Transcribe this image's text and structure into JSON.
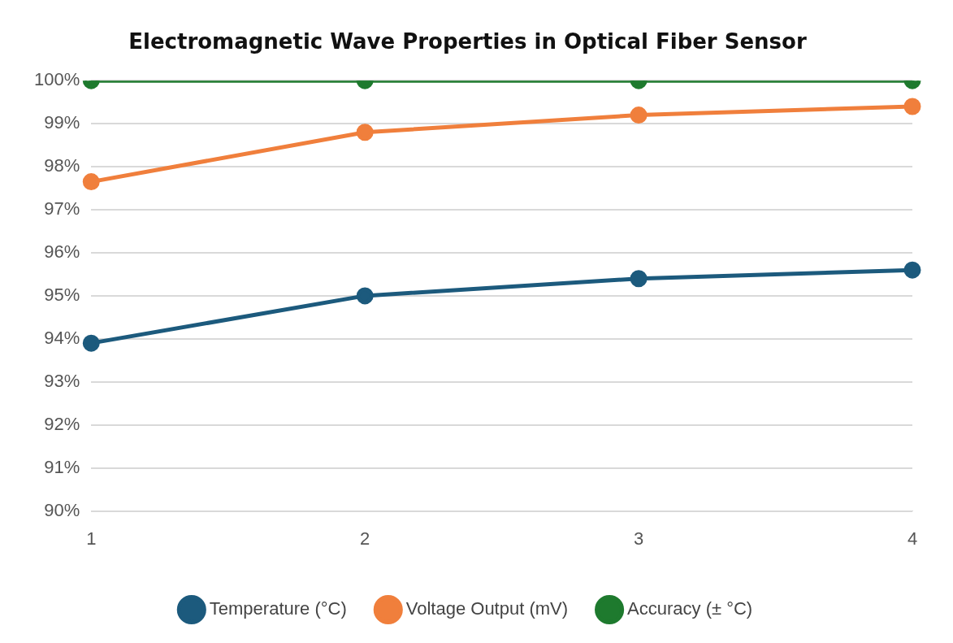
{
  "chart_data": {
    "type": "line",
    "title": "Electromagnetic Wave Properties in Optical Fiber Sensor",
    "categories": [
      "1",
      "2",
      "3",
      "4"
    ],
    "series": [
      {
        "name": "Temperature (°C)",
        "color": "#1c5a7d",
        "values": [
          93.9,
          95.0,
          95.4,
          95.6
        ]
      },
      {
        "name": "Voltage Output (mV)",
        "color": "#f07f3c",
        "values": [
          97.65,
          98.8,
          99.2,
          99.4
        ]
      },
      {
        "name": "Accuracy (± °C)",
        "color": "#1e7a2e",
        "values": [
          100,
          100,
          100,
          100
        ]
      }
    ],
    "ylim": [
      90,
      100
    ],
    "yticks": [
      {
        "value": 90,
        "label": "90%"
      },
      {
        "value": 91,
        "label": "91%"
      },
      {
        "value": 92,
        "label": "92%"
      },
      {
        "value": 93,
        "label": "93%"
      },
      {
        "value": 94,
        "label": "94%"
      },
      {
        "value": 95,
        "label": "95%"
      },
      {
        "value": 96,
        "label": "96%"
      },
      {
        "value": 97,
        "label": "97%"
      },
      {
        "value": 98,
        "label": "98%"
      },
      {
        "value": 99,
        "label": "99%"
      },
      {
        "value": 100,
        "label": "100%"
      }
    ],
    "grid": "y",
    "legend": "bottom",
    "marker": "circle",
    "line_style": "solid"
  }
}
